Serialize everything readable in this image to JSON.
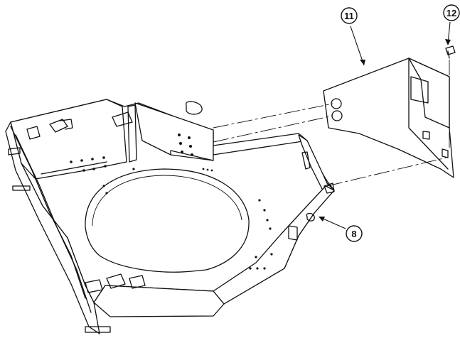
{
  "callouts": {
    "c11": "11",
    "c12": "12",
    "c8": "8"
  },
  "colors": {
    "line": "#111111",
    "background": "#ffffff"
  }
}
